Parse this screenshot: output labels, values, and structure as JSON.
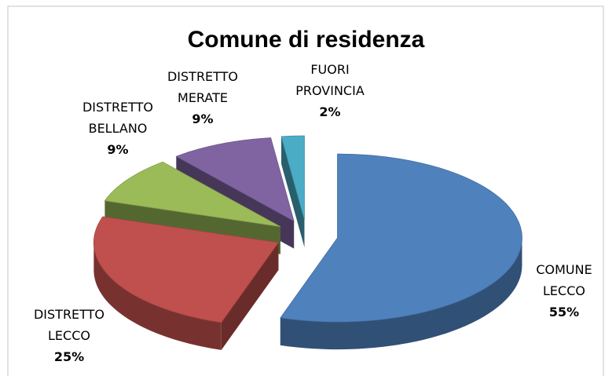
{
  "chart_data": {
    "type": "pie3d",
    "title": "Comune di residenza",
    "categories": [
      "COMUNE LECCO",
      "DISTRETTO LECCO",
      "DISTRETTO BELLANO",
      "DISTRETTO MERATE",
      "FUORI PROVINCIA"
    ],
    "values": [
      55,
      25,
      9,
      9,
      2
    ],
    "value_labels": [
      "55%",
      "25%",
      "9%",
      "9%",
      "2%"
    ],
    "colors": [
      "#4f81bd",
      "#c0504d",
      "#9bbb59",
      "#8064a2",
      "#4bacc6"
    ]
  }
}
